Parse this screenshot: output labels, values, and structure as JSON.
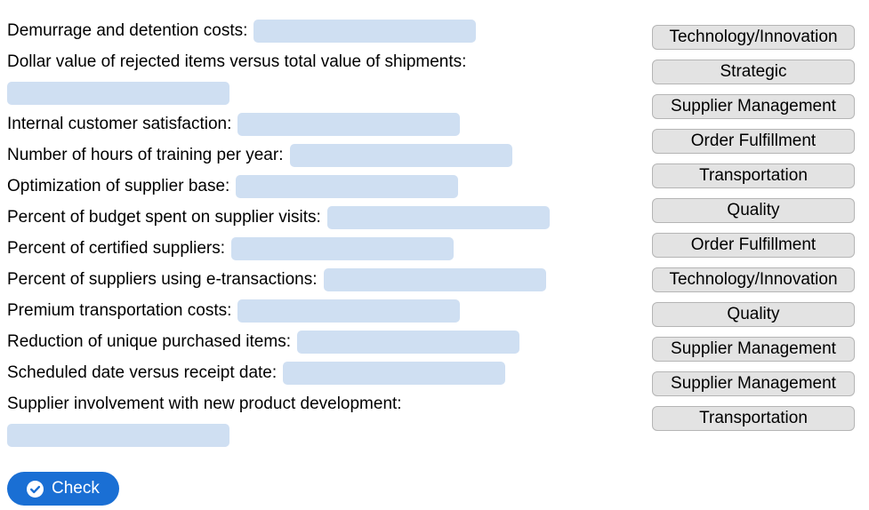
{
  "colors": {
    "dropzone_bg": "#cfdff2",
    "draggable_bg": "#e3e3e3",
    "draggable_border": "#b5b5b5",
    "check_button_bg": "#1a6fd4",
    "check_button_text": "#ffffff",
    "label_text": "#000000"
  },
  "matching": {
    "items": [
      {
        "label": "Demurrage and detention costs:",
        "blank_wraps_to_next_line": false
      },
      {
        "label": "Dollar value of rejected items versus total value of shipments:",
        "blank_wraps_to_next_line": true
      },
      {
        "label": "Internal customer satisfaction:",
        "blank_wraps_to_next_line": false
      },
      {
        "label": "Number of hours of training per year:",
        "blank_wraps_to_next_line": false
      },
      {
        "label": "Optimization of supplier base:",
        "blank_wraps_to_next_line": false
      },
      {
        "label": "Percent of budget spent on supplier visits:",
        "blank_wraps_to_next_line": false
      },
      {
        "label": "Percent of certified suppliers:",
        "blank_wraps_to_next_line": false
      },
      {
        "label": "Percent of suppliers using e-transactions:",
        "blank_wraps_to_next_line": false
      },
      {
        "label": "Premium transportation costs:",
        "blank_wraps_to_next_line": false
      },
      {
        "label": "Reduction of unique purchased items:",
        "blank_wraps_to_next_line": false
      },
      {
        "label": "Scheduled date versus receipt date:",
        "blank_wraps_to_next_line": false
      },
      {
        "label": "Supplier involvement with new product development:",
        "blank_wraps_to_next_line": true
      }
    ],
    "draggables": [
      {
        "label": "Technology/Innovation"
      },
      {
        "label": "Strategic"
      },
      {
        "label": "Supplier Management"
      },
      {
        "label": "Order Fulfillment"
      },
      {
        "label": "Transportation"
      },
      {
        "label": "Quality"
      },
      {
        "label": "Order Fulfillment"
      },
      {
        "label": "Technology/Innovation"
      },
      {
        "label": "Quality"
      },
      {
        "label": "Supplier Management"
      },
      {
        "label": "Supplier Management"
      },
      {
        "label": "Transportation"
      }
    ]
  },
  "toolbar": {
    "check_label": "Check",
    "check_icon": "check-circle-icon"
  }
}
